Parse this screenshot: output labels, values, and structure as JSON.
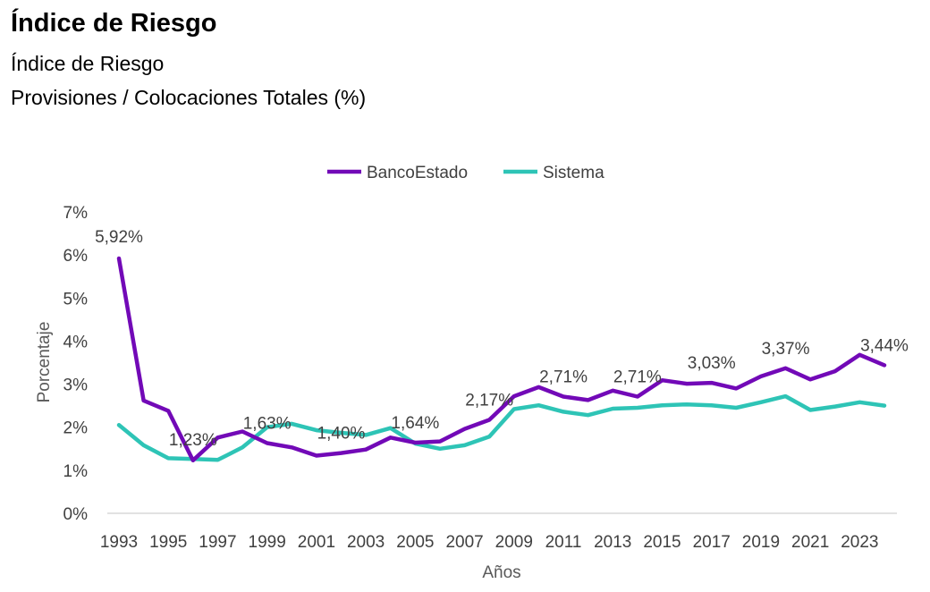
{
  "header": {
    "title": "Índice de Riesgo",
    "subtitle": "Índice de Riesgo",
    "subtitle2": "Provisiones / Colocaciones Totales (%)"
  },
  "chart_data": {
    "type": "line",
    "xlabel": "Años",
    "ylabel": "Porcentaje",
    "ylim": [
      0,
      7
    ],
    "y_ticks": [
      "0%",
      "1%",
      "2%",
      "3%",
      "4%",
      "5%",
      "6%",
      "7%"
    ],
    "x_tick_labels": [
      "1993",
      "1995",
      "1997",
      "1999",
      "2001",
      "2003",
      "2005",
      "2007",
      "2009",
      "2011",
      "2013",
      "2015",
      "2017",
      "2019",
      "2021",
      "2023"
    ],
    "x": [
      1993,
      1994,
      1995,
      1996,
      1997,
      1998,
      1999,
      2000,
      2001,
      2002,
      2003,
      2004,
      2005,
      2006,
      2007,
      2008,
      2009,
      2010,
      2011,
      2012,
      2013,
      2014,
      2015,
      2016,
      2017,
      2018,
      2019,
      2020,
      2021,
      2022,
      2023,
      2024
    ],
    "grid": false,
    "legend_position": "top",
    "series": [
      {
        "name": "BancoEstado",
        "color": "#7209b7",
        "values": [
          5.92,
          2.62,
          2.38,
          1.23,
          1.76,
          1.9,
          1.63,
          1.53,
          1.34,
          1.4,
          1.48,
          1.76,
          1.64,
          1.67,
          1.96,
          2.17,
          2.72,
          2.93,
          2.71,
          2.63,
          2.85,
          2.71,
          3.09,
          3.01,
          3.03,
          2.9,
          3.18,
          3.37,
          3.11,
          3.3,
          3.68,
          3.44
        ]
      },
      {
        "name": "Sistema",
        "color": "#2ec4b6",
        "values": [
          2.05,
          1.58,
          1.28,
          1.26,
          1.24,
          1.53,
          2.0,
          2.08,
          1.93,
          1.87,
          1.82,
          1.98,
          1.62,
          1.5,
          1.58,
          1.78,
          2.42,
          2.51,
          2.36,
          2.28,
          2.43,
          2.45,
          2.51,
          2.53,
          2.51,
          2.45,
          2.58,
          2.72,
          2.4,
          2.48,
          2.58,
          2.5
        ]
      }
    ],
    "data_labels": [
      {
        "series": 0,
        "x": 1993,
        "text": "5,92%"
      },
      {
        "series": 0,
        "x": 1996,
        "text": "1,23%"
      },
      {
        "series": 0,
        "x": 1999,
        "text": "1,63%"
      },
      {
        "series": 0,
        "x": 2002,
        "text": "1,40%"
      },
      {
        "series": 0,
        "x": 2005,
        "text": "1,64%"
      },
      {
        "series": 0,
        "x": 2008,
        "text": "2,17%"
      },
      {
        "series": 0,
        "x": 2011,
        "text": "2,71%"
      },
      {
        "series": 0,
        "x": 2014,
        "text": "2,71%"
      },
      {
        "series": 0,
        "x": 2017,
        "text": "3,03%"
      },
      {
        "series": 0,
        "x": 2020,
        "text": "3,37%"
      },
      {
        "series": 0,
        "x": 2024,
        "text": "3,44%"
      }
    ]
  }
}
